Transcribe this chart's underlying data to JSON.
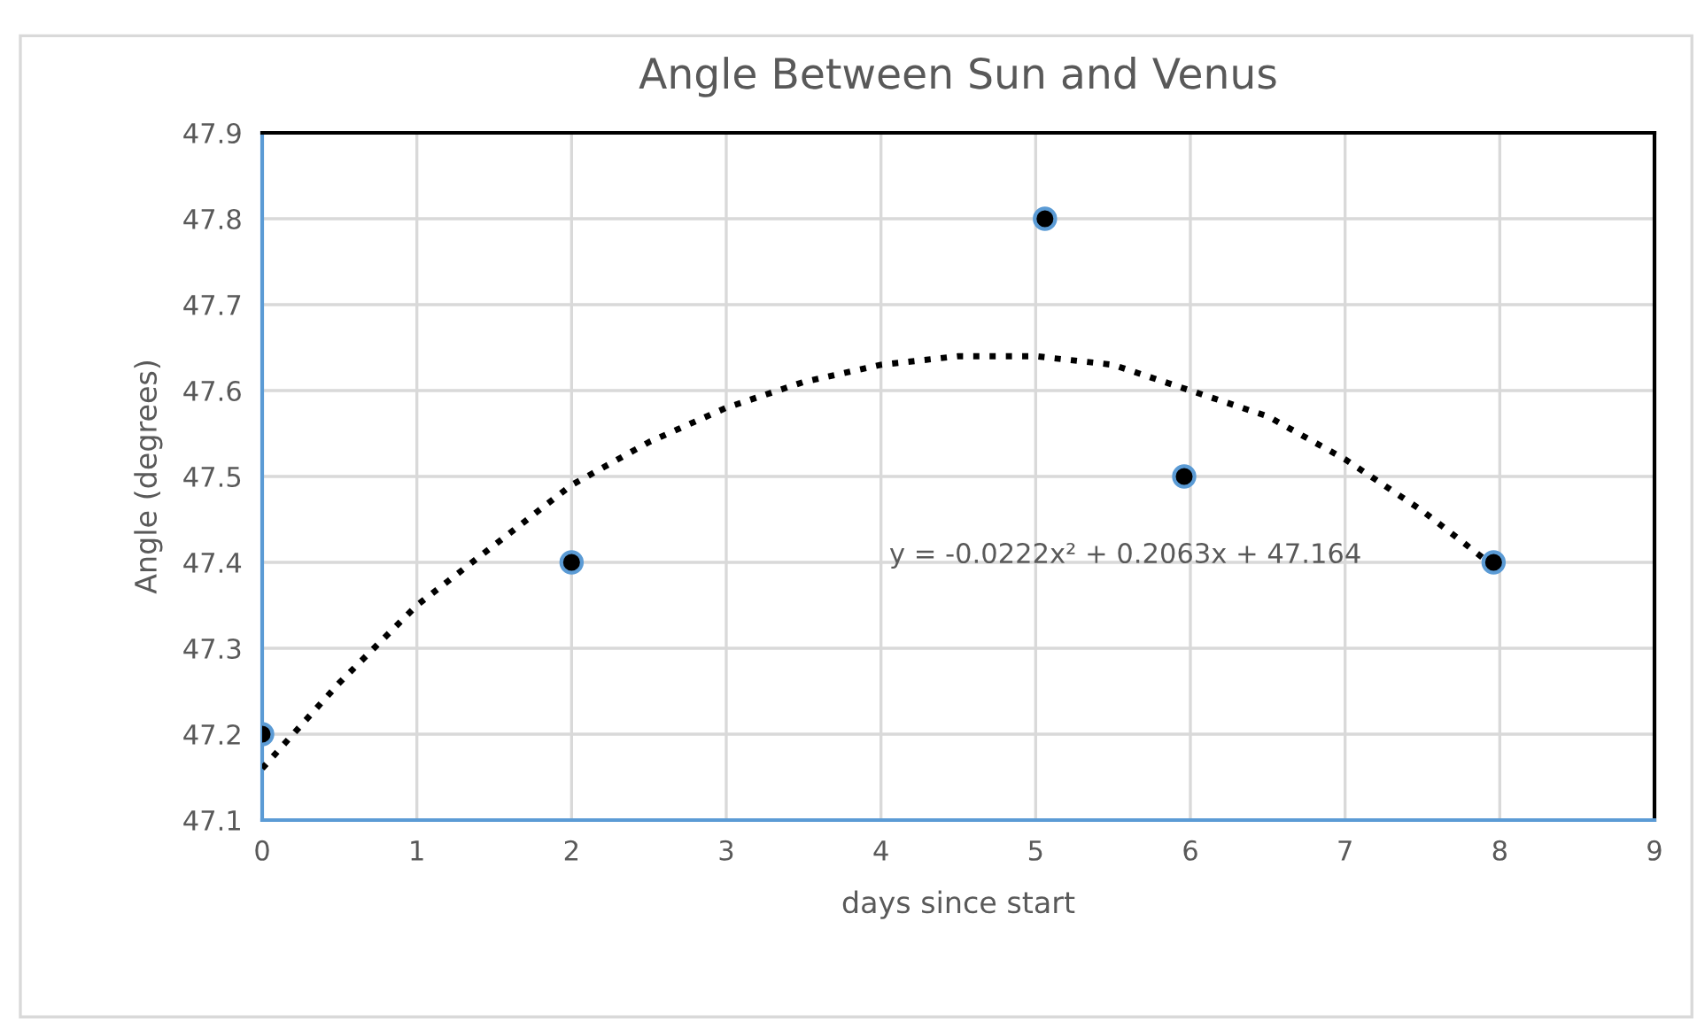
{
  "chart_data": {
    "type": "scatter",
    "title": "Angle Between Sun and Venus",
    "xlabel": "days since start",
    "ylabel": "Angle (degrees)",
    "xlim": [
      0,
      9
    ],
    "xticks": [
      0,
      1,
      2,
      3,
      4,
      5,
      6,
      7,
      8,
      9
    ],
    "ylim": [
      47.1,
      47.9
    ],
    "yticks": [
      47.1,
      47.2,
      47.3,
      47.4,
      47.5,
      47.6,
      47.7,
      47.8,
      47.9
    ],
    "grid": true,
    "legend": false,
    "series": [
      {
        "color": "#000000",
        "marker": "circle",
        "x": [
          0,
          2,
          5.06,
          5.96,
          7.96
        ],
        "values": [
          47.2,
          47.4,
          47.8,
          47.5,
          47.4
        ]
      },
      {
        "type": "line",
        "color": "#000000",
        "line_style": "dotted",
        "marker": "none",
        "x": [
          0,
          0.5,
          1,
          1.5,
          2,
          2.5,
          3,
          3.5,
          4,
          4.5,
          5,
          5.5,
          6,
          6.5,
          7,
          7.5,
          8
        ],
        "values": [
          47.16,
          47.26,
          47.35,
          47.42,
          47.49,
          47.54,
          47.58,
          47.61,
          47.63,
          47.64,
          47.64,
          47.63,
          47.6,
          47.57,
          47.52,
          47.46,
          47.39
        ]
      }
    ],
    "annotations": [
      "y = -0.0222x² + 0.2063x + 47.164"
    ]
  }
}
